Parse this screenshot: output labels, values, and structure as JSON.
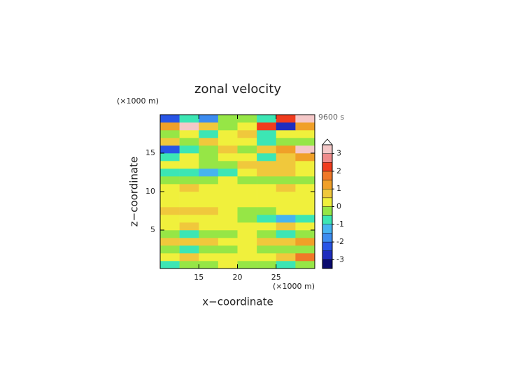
{
  "chart_data": {
    "type": "contour",
    "title": "zonal velocity",
    "x_label": "x−coordinate",
    "y_label": "z−coordinate",
    "x_unit": "(×1000 m)",
    "y_unit": "(×1000 m)",
    "time_label": "9600 s",
    "xlim": [
      10,
      30
    ],
    "ylim": [
      0,
      20
    ],
    "xticks": [
      15,
      20,
      25
    ],
    "yticks": [
      5,
      10,
      15
    ],
    "x": [
      11.25,
      13.75,
      16.25,
      18.75,
      21.25,
      23.75,
      26.25,
      28.75
    ],
    "y": [
      0.5,
      1.5,
      2.5,
      3.5,
      4.5,
      5.5,
      6.5,
      7.5,
      8.5,
      9.5,
      10.5,
      11.5,
      12.5,
      13.5,
      14.5,
      15.5,
      16.5,
      17.5,
      18.5,
      19.5
    ],
    "z": [
      [
        -0.7,
        -0.5,
        -0.3,
        0.2,
        -0.3,
        -0.5,
        -0.7,
        -0.5
      ],
      [
        0.3,
        0.5,
        0.3,
        0.2,
        0.2,
        0.3,
        0.8,
        1.8
      ],
      [
        -0.3,
        -0.6,
        -0.5,
        -0.3,
        0.2,
        -0.4,
        -0.3,
        -0.2
      ],
      [
        0.8,
        0.7,
        0.5,
        0.2,
        0.3,
        0.6,
        0.7,
        1.2
      ],
      [
        -0.3,
        -0.6,
        -0.5,
        -0.2,
        0.2,
        -0.3,
        -0.6,
        -0.4
      ],
      [
        0.3,
        0.5,
        0.4,
        0.2,
        0.2,
        0.4,
        0.6,
        0.3
      ],
      [
        0.2,
        0.3,
        0.2,
        0.1,
        -0.4,
        -0.9,
        -1.2,
        -0.6
      ],
      [
        0.6,
        0.8,
        0.6,
        0.2,
        -0.2,
        -0.3,
        0.2,
        0.3
      ],
      [
        0.2,
        0.3,
        0.2,
        0.1,
        0.3,
        0.2,
        0.1,
        0.2
      ],
      [
        0.3,
        0.4,
        0.2,
        0.1,
        0.2,
        0.3,
        0.4,
        0.3
      ],
      [
        0.2,
        0.6,
        0.4,
        0.1,
        0.1,
        0.4,
        0.6,
        0.2
      ],
      [
        -0.3,
        -0.4,
        -0.2,
        0.1,
        -0.3,
        -0.5,
        -0.4,
        -0.3
      ],
      [
        -0.6,
        -1.0,
        -1.2,
        -0.6,
        0.3,
        0.6,
        0.7,
        0.4
      ],
      [
        0.4,
        0.3,
        -0.4,
        -0.2,
        0.6,
        0.9,
        0.6,
        0.3
      ],
      [
        -0.8,
        0.3,
        -0.5,
        0.2,
        0.3,
        -0.6,
        0.7,
        1.2
      ],
      [
        -2.3,
        -0.8,
        -0.3,
        0.5,
        -0.4,
        0.6,
        1.2,
        3.2
      ],
      [
        0.6,
        -0.4,
        0.5,
        0.3,
        0.4,
        -0.6,
        -0.4,
        -0.5
      ],
      [
        -0.5,
        0.4,
        -0.7,
        0.3,
        0.5,
        -0.8,
        0.4,
        0.3
      ],
      [
        1.2,
        3.3,
        0.6,
        -0.3,
        0.4,
        2.0,
        -2.8,
        1.0
      ],
      [
        -2.5,
        -0.8,
        -2.0,
        -0.3,
        -0.5,
        -1.0,
        2.4,
        3.3
      ]
    ],
    "levels": [
      -3.5,
      -3,
      -2.5,
      -2,
      -1.5,
      -1,
      -0.5,
      0,
      0.5,
      1,
      1.5,
      2,
      2.5,
      3,
      3.5
    ],
    "colors": [
      "#0a0a6e",
      "#1e2dbe",
      "#2855e6",
      "#3c8cf0",
      "#46b4f0",
      "#3ce6b4",
      "#96e646",
      "#f0f03c",
      "#f0c83c",
      "#f0a028",
      "#f07828",
      "#f03c1e",
      "#f08c8c",
      "#f5c8c8"
    ],
    "cbar_ticks": [
      -3,
      -2,
      -1,
      0,
      1,
      2,
      3
    ]
  }
}
